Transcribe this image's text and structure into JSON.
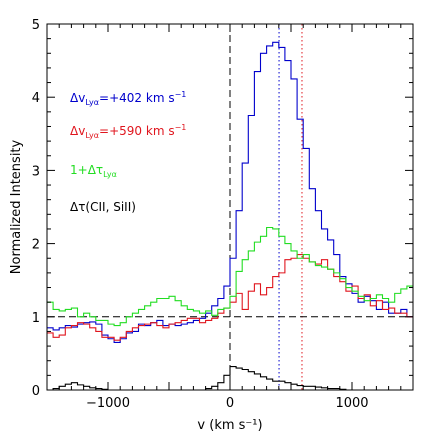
{
  "chart_data": {
    "type": "line",
    "title": "",
    "xlabel": "v (km s⁻¹)",
    "ylabel": "Normalized Intensity",
    "xlim": [
      -1500,
      1500
    ],
    "ylim": [
      0,
      5
    ],
    "xticks": [
      -1000,
      0,
      1000
    ],
    "xtick_labels": [
      "−1000",
      "0",
      "1000"
    ],
    "yticks": [
      0,
      1,
      2,
      3,
      4,
      5
    ],
    "ytick_labels": [
      "0",
      "1",
      "2",
      "3",
      "4",
      "5"
    ],
    "reference_lines": [
      {
        "orientation": "vertical",
        "x": 0,
        "style": "dashed",
        "color": "#000000"
      },
      {
        "orientation": "vertical",
        "x": 402,
        "style": "dotted",
        "color": "#0000cc"
      },
      {
        "orientation": "vertical",
        "x": 590,
        "style": "dotted",
        "color": "#e0161e"
      },
      {
        "orientation": "horizontal",
        "y": 1,
        "style": "dashed",
        "color": "#000000"
      }
    ],
    "legend": [
      {
        "text": "Δv",
        "sub": "Lyα",
        "rest": "=+402 km s",
        "sup": "−1",
        "color": "#0000cc"
      },
      {
        "text": "Δv",
        "sub": "Lyα",
        "rest": "=+590 km s",
        "sup": "−1",
        "color": "#e0161e"
      },
      {
        "text": "1+Δτ",
        "sub": "Lyα",
        "rest": "",
        "sup": "",
        "color": "#22dd22"
      },
      {
        "text": "Δτ(CII, SiII)",
        "sub": "",
        "rest": "",
        "sup": "",
        "color": "#000000"
      }
    ],
    "legend_position": "top-left",
    "series": [
      {
        "color": "#0000cc",
        "style": "step",
        "x": [
          -1500,
          -1450,
          -1400,
          -1350,
          -1300,
          -1250,
          -1200,
          -1150,
          -1100,
          -1050,
          -1000,
          -950,
          -900,
          -850,
          -800,
          -750,
          -700,
          -650,
          -600,
          -550,
          -500,
          -450,
          -400,
          -350,
          -300,
          -250,
          -200,
          -150,
          -100,
          -50,
          0,
          50,
          100,
          150,
          200,
          250,
          300,
          350,
          400,
          450,
          500,
          550,
          600,
          650,
          700,
          750,
          800,
          850,
          900,
          950,
          1000,
          1050,
          1100,
          1150,
          1200,
          1250,
          1300,
          1350,
          1400,
          1450,
          1500
        ],
        "y": [
          0.85,
          0.82,
          0.85,
          0.88,
          0.86,
          0.9,
          0.92,
          0.93,
          0.9,
          0.75,
          0.7,
          0.65,
          0.7,
          0.78,
          0.8,
          0.9,
          0.88,
          0.92,
          0.95,
          0.88,
          0.9,
          0.88,
          0.9,
          0.92,
          0.95,
          0.98,
          1.05,
          1.15,
          1.25,
          1.42,
          1.8,
          2.45,
          3.1,
          3.75,
          4.35,
          4.6,
          4.7,
          4.75,
          4.68,
          4.5,
          4.25,
          3.7,
          3.3,
          2.75,
          2.45,
          2.2,
          2.05,
          1.85,
          1.55,
          1.45,
          1.32,
          1.2,
          1.28,
          1.22,
          1.1,
          1.2,
          1.05,
          1.05,
          1.1,
          1.0,
          1.0
        ]
      },
      {
        "color": "#e0161e",
        "style": "step",
        "x": [
          -1500,
          -1450,
          -1400,
          -1350,
          -1300,
          -1250,
          -1200,
          -1150,
          -1100,
          -1050,
          -1000,
          -950,
          -900,
          -850,
          -800,
          -750,
          -700,
          -650,
          -600,
          -550,
          -500,
          -450,
          -400,
          -350,
          -300,
          -250,
          -200,
          -150,
          -100,
          -50,
          0,
          50,
          100,
          150,
          200,
          250,
          300,
          350,
          400,
          450,
          500,
          550,
          600,
          650,
          700,
          750,
          800,
          850,
          900,
          950,
          1000,
          1050,
          1100,
          1150,
          1200,
          1250,
          1300,
          1350,
          1400,
          1450,
          1500
        ],
        "y": [
          0.78,
          0.72,
          0.75,
          0.85,
          0.88,
          0.92,
          0.9,
          0.85,
          0.8,
          0.72,
          0.72,
          0.68,
          0.72,
          0.8,
          0.85,
          0.88,
          0.9,
          0.92,
          0.88,
          0.85,
          0.9,
          0.92,
          0.95,
          0.98,
          0.98,
          0.92,
          0.95,
          0.98,
          1.05,
          1.12,
          1.2,
          1.32,
          1.1,
          1.35,
          1.45,
          1.3,
          1.4,
          1.55,
          1.6,
          1.78,
          1.8,
          1.85,
          1.8,
          1.75,
          1.72,
          1.78,
          1.65,
          1.55,
          1.48,
          1.35,
          1.42,
          1.25,
          1.3,
          1.15,
          1.22,
          1.1,
          1.12,
          1.05,
          1.05,
          1.0,
          1.0
        ]
      },
      {
        "color": "#22dd22",
        "style": "step",
        "x": [
          -1500,
          -1450,
          -1400,
          -1350,
          -1300,
          -1250,
          -1200,
          -1150,
          -1100,
          -1050,
          -1000,
          -950,
          -900,
          -850,
          -800,
          -750,
          -700,
          -650,
          -600,
          -550,
          -500,
          -450,
          -400,
          -350,
          -300,
          -250,
          -200,
          -150,
          -100,
          -50,
          0,
          50,
          100,
          150,
          200,
          250,
          300,
          350,
          400,
          450,
          500,
          550,
          600,
          650,
          700,
          750,
          800,
          850,
          900,
          950,
          1000,
          1050,
          1100,
          1150,
          1200,
          1250,
          1300,
          1350,
          1400,
          1450,
          1500
        ],
        "y": [
          1.2,
          1.1,
          1.08,
          1.1,
          1.12,
          1.0,
          1.05,
          1.0,
          0.95,
          0.95,
          0.9,
          0.88,
          0.92,
          1.0,
          1.05,
          1.1,
          1.15,
          1.2,
          1.25,
          1.25,
          1.28,
          1.22,
          1.15,
          1.1,
          1.08,
          1.05,
          1.08,
          1.02,
          1.1,
          1.12,
          1.28,
          1.62,
          1.78,
          1.9,
          2.02,
          2.1,
          2.22,
          2.2,
          2.1,
          2.0,
          1.9,
          1.8,
          1.85,
          1.75,
          1.7,
          1.68,
          1.65,
          1.6,
          1.52,
          1.4,
          1.35,
          1.28,
          1.22,
          1.25,
          1.3,
          1.25,
          1.2,
          1.32,
          1.38,
          1.42,
          1.42
        ]
      },
      {
        "color": "#000000",
        "style": "step",
        "x": [
          -1500,
          -1450,
          -1400,
          -1350,
          -1300,
          -1250,
          -1200,
          -1150,
          -1100,
          -1050,
          -1000,
          -950,
          -900,
          -850,
          -800,
          -750,
          -700,
          -650,
          -600,
          -550,
          -500,
          -450,
          -400,
          -350,
          -300,
          -250,
          -200,
          -150,
          -100,
          -50,
          0,
          50,
          100,
          150,
          200,
          250,
          300,
          350,
          400,
          450,
          500,
          550,
          600,
          650,
          700,
          750,
          800,
          850,
          900,
          950,
          1000,
          1050,
          1100,
          1150,
          1200,
          1250,
          1300,
          1350,
          1400,
          1450,
          1500
        ],
        "y": [
          0.0,
          0.02,
          0.05,
          0.08,
          0.1,
          0.07,
          0.05,
          0.03,
          0.02,
          0.01,
          0.0,
          0.0,
          0.0,
          0.0,
          0.0,
          0.0,
          0.0,
          0.0,
          0.0,
          0.0,
          0.0,
          0.0,
          0.0,
          0.0,
          0.0,
          0.0,
          0.02,
          0.05,
          0.1,
          0.2,
          0.32,
          0.3,
          0.28,
          0.25,
          0.22,
          0.18,
          0.15,
          0.12,
          0.12,
          0.1,
          0.08,
          0.06,
          0.05,
          0.05,
          0.04,
          0.03,
          0.02,
          0.02,
          0.01,
          0.0,
          0.0,
          0.0,
          0.0,
          0.0,
          0.0,
          0.0,
          0.0,
          0.0,
          0.0,
          0.0,
          0.0
        ]
      }
    ]
  }
}
